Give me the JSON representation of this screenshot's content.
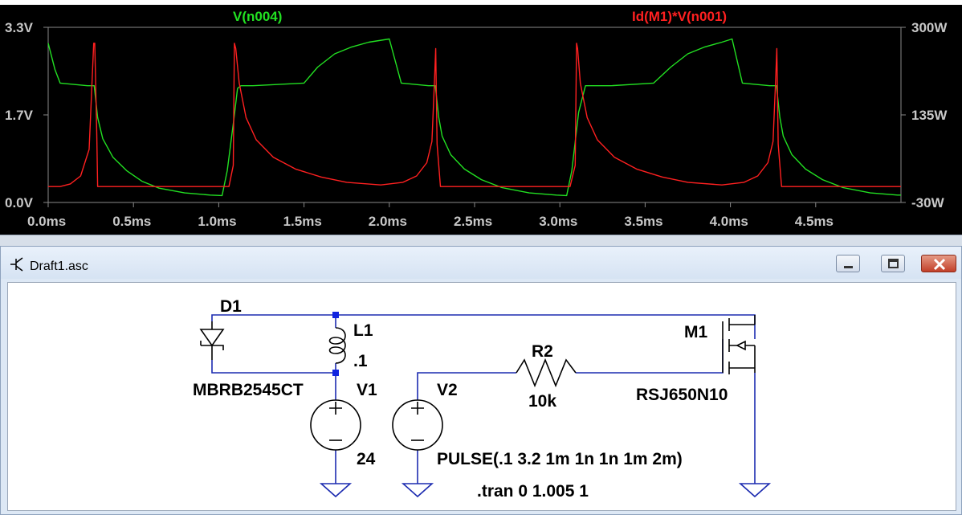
{
  "plot": {
    "background": "#000000",
    "trace1_name": "V(n004)",
    "trace1_color": "#22e022",
    "trace2_name": "Id(M1)*V(n001)",
    "trace2_color": "#ff2020",
    "left_axis": {
      "top": "3.3V",
      "mid": "1.7V",
      "bottom": "0.0V"
    },
    "right_axis": {
      "top": "300W",
      "mid": "135W",
      "bottom": "-30W"
    },
    "x_ticks": [
      "0.0ms",
      "0.5ms",
      "1.0ms",
      "1.5ms",
      "2.0ms",
      "2.5ms",
      "3.0ms",
      "3.5ms",
      "4.0ms",
      "4.5ms"
    ]
  },
  "chart_data": {
    "type": "line",
    "title": "",
    "xlim": [
      0,
      5
    ],
    "ylim_left": [
      0,
      3.3
    ],
    "ylim_right": [
      -30,
      300
    ],
    "series": [
      {
        "name": "V(n004)",
        "axis": "left",
        "x": [
          0.0,
          0.04,
          0.07,
          0.23,
          0.27,
          0.29,
          0.32,
          0.38,
          0.46,
          0.55,
          0.65,
          0.8,
          0.95,
          1.02,
          1.05,
          1.09,
          1.11,
          1.13,
          1.2,
          1.5,
          1.58,
          1.68,
          1.78,
          1.88,
          2.0,
          2.07,
          2.23,
          2.27,
          2.29,
          2.31,
          2.36,
          2.44,
          2.54,
          2.66,
          2.82,
          2.98,
          3.04,
          3.07,
          3.11,
          3.15,
          3.3,
          3.55,
          3.65,
          3.75,
          3.85,
          3.95,
          4.01,
          4.07,
          4.23,
          4.27,
          4.29,
          4.31,
          4.36,
          4.44,
          4.54,
          4.66,
          4.82,
          4.98,
          5.0
        ],
        "y": [
          3.0,
          2.5,
          2.25,
          2.2,
          2.2,
          1.6,
          1.2,
          0.85,
          0.6,
          0.4,
          0.27,
          0.18,
          0.14,
          0.13,
          0.6,
          1.6,
          2.15,
          2.2,
          2.2,
          2.25,
          2.55,
          2.8,
          2.93,
          3.02,
          3.08,
          2.25,
          2.2,
          2.2,
          1.6,
          1.25,
          0.9,
          0.63,
          0.43,
          0.28,
          0.18,
          0.14,
          0.13,
          0.6,
          1.7,
          2.2,
          2.2,
          2.25,
          2.55,
          2.8,
          2.93,
          3.02,
          3.08,
          2.25,
          2.2,
          2.2,
          1.6,
          1.25,
          0.9,
          0.63,
          0.43,
          0.28,
          0.18,
          0.14,
          0.14
        ]
      },
      {
        "name": "Id(M1)*V(n001)",
        "axis": "right",
        "x": [
          0.0,
          0.07,
          0.13,
          0.19,
          0.24,
          0.267,
          0.273,
          0.285,
          0.29,
          1.06,
          1.085,
          1.092,
          1.1,
          1.12,
          1.16,
          1.22,
          1.32,
          1.45,
          1.6,
          1.75,
          1.95,
          2.08,
          2.16,
          2.22,
          2.25,
          2.265,
          2.272,
          2.28,
          2.3,
          3.06,
          3.09,
          3.098,
          3.104,
          3.12,
          3.16,
          3.22,
          3.32,
          3.45,
          3.6,
          3.75,
          3.95,
          4.08,
          4.16,
          4.22,
          4.25,
          4.265,
          4.272,
          4.28,
          4.3,
          5.0
        ],
        "y": [
          0,
          0,
          5,
          20,
          70,
          270,
          270,
          100,
          0,
          0,
          40,
          270,
          260,
          195,
          130,
          88,
          55,
          33,
          18,
          8,
          3,
          8,
          20,
          45,
          85,
          200,
          260,
          80,
          0,
          0,
          40,
          270,
          260,
          195,
          130,
          88,
          55,
          33,
          18,
          8,
          3,
          8,
          20,
          45,
          85,
          200,
          260,
          80,
          0,
          0
        ]
      }
    ]
  },
  "window": {
    "title": "Draft1.asc",
    "min_label": "minimize",
    "max_label": "maximize",
    "close_label": "close"
  },
  "schematic": {
    "d1_name": "D1",
    "d1_model": "MBRB2545CT",
    "l1_name": "L1",
    "l1_value": ".1",
    "v1_name": "V1",
    "v1_value": "24",
    "v2_name": "V2",
    "v2_value": "PULSE(.1 3.2 1m 1n 1n 1m 2m)",
    "r2_name": "R2",
    "r2_value": "10k",
    "m1_name": "M1",
    "m1_model": "RSJ650N10",
    "directive": ".tran 0 1.005 1",
    "wire_color": "#1c2bb0",
    "junction_color": "#1024e0"
  }
}
